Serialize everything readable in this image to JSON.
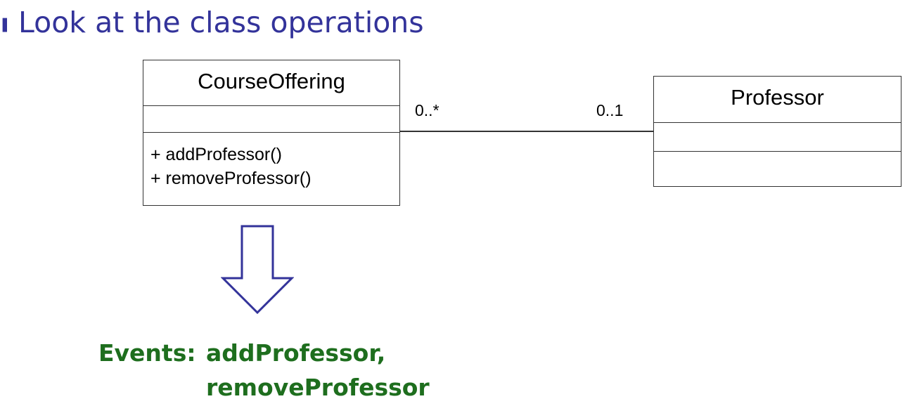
{
  "heading": {
    "text": "Look at the class operations",
    "color": "#33339a"
  },
  "classes": {
    "course_offering": {
      "name": "CourseOffering",
      "operations": [
        "+ addProfessor()",
        "+ removeProfessor()"
      ]
    },
    "professor": {
      "name": "Professor"
    }
  },
  "association": {
    "left_multiplicity": "0..*",
    "right_multiplicity": "0..1"
  },
  "arrow": {
    "icon": "down-arrow-icon",
    "color": "#33339a"
  },
  "events": {
    "label": "Events:",
    "line1": "addProfessor,",
    "line2": "removeProfessor",
    "color": "#1e6e1e"
  }
}
